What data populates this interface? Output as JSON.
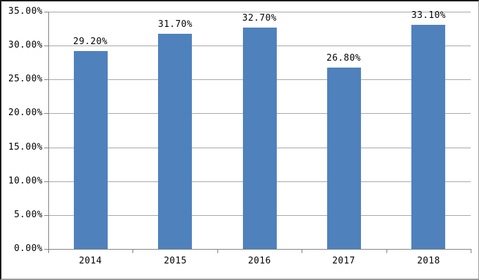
{
  "chart_data": {
    "type": "bar",
    "title": "",
    "xlabel": "",
    "ylabel": "",
    "categories": [
      "2014",
      "2015",
      "2016",
      "2017",
      "2018"
    ],
    "values": [
      29.2,
      31.7,
      32.7,
      26.8,
      33.1
    ],
    "data_labels": [
      "29.20%",
      "31.70%",
      "32.70%",
      "26.80%",
      "33.10%"
    ],
    "y_tick_labels": [
      "0.00%",
      "5.00%",
      "10.00%",
      "15.00%",
      "20.00%",
      "25.00%",
      "30.00%",
      "35.00%"
    ],
    "ylim": [
      0,
      35
    ],
    "y_tick_step": 5,
    "grid": true,
    "legend": "none",
    "colors": {
      "bar": "#4F81BD",
      "gridline": "#A6A6A6",
      "axis": "#808080",
      "text": "#000000",
      "background": "#FFFFFF",
      "frame_border_dark": "#1A1A1A",
      "frame_border_light": "#9A9A9A"
    }
  }
}
